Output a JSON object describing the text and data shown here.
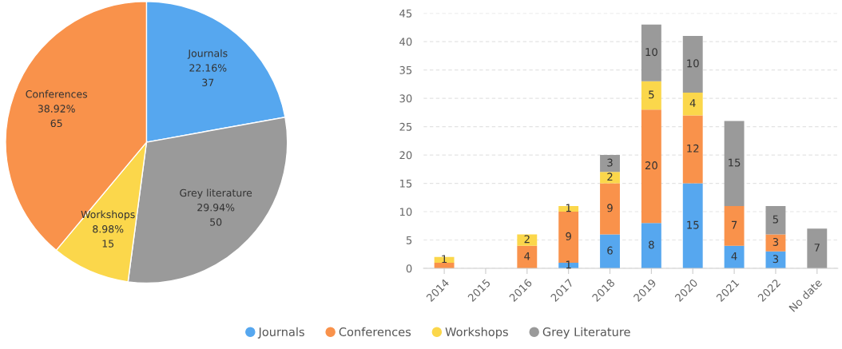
{
  "chart_data": [
    {
      "type": "pie",
      "categories": [
        "Journals",
        "Grey literature",
        "Workshops",
        "Conferences"
      ],
      "values": [
        37,
        50,
        15,
        65
      ],
      "colors": [
        "#56a7ef",
        "#9a9a9a",
        "#fbd74b",
        "#f9924b"
      ],
      "data_labels": true,
      "annotations": [
        "22.16%",
        "29.94%",
        "8.98%",
        "38.92%"
      ]
    },
    {
      "type": "bar",
      "stacked": true,
      "categories": [
        "2014",
        "2015",
        "2016",
        "2017",
        "2018",
        "2019",
        "2020",
        "2021",
        "2022",
        "No date"
      ],
      "series": [
        {
          "name": "Journals",
          "color": "#56a7ef",
          "values": [
            null,
            null,
            null,
            1,
            6,
            8,
            15,
            4,
            3,
            null
          ],
          "value_labels": [
            null,
            null,
            null,
            "1",
            "6",
            "8",
            "15",
            "4",
            "3",
            null
          ]
        },
        {
          "name": "Conferences",
          "color": "#f9924b",
          "values": [
            1,
            null,
            4,
            9,
            9,
            20,
            12,
            7,
            3,
            null
          ],
          "value_labels": [
            null,
            null,
            "4",
            "9",
            "9",
            "20",
            "12",
            "7",
            "3",
            null
          ]
        },
        {
          "name": "Workshops",
          "color": "#fbd74b",
          "values": [
            1,
            null,
            2,
            1,
            2,
            5,
            4,
            null,
            null,
            null
          ],
          "value_labels": [
            "1",
            null,
            "2",
            "1",
            "2",
            "5",
            "4",
            null,
            null,
            null
          ]
        },
        {
          "name": "Grey Literature",
          "color": "#9a9a9a",
          "values": [
            null,
            null,
            null,
            null,
            3,
            10,
            10,
            15,
            5,
            7
          ],
          "value_labels": [
            null,
            null,
            null,
            null,
            "3",
            "10",
            "10",
            "15",
            "5",
            "7"
          ]
        }
      ],
      "ylim": [
        0,
        45
      ],
      "yticks": [
        0,
        5,
        10,
        15,
        20,
        25,
        30,
        35,
        40,
        45
      ],
      "grid": "y",
      "legend": "bottom"
    }
  ]
}
